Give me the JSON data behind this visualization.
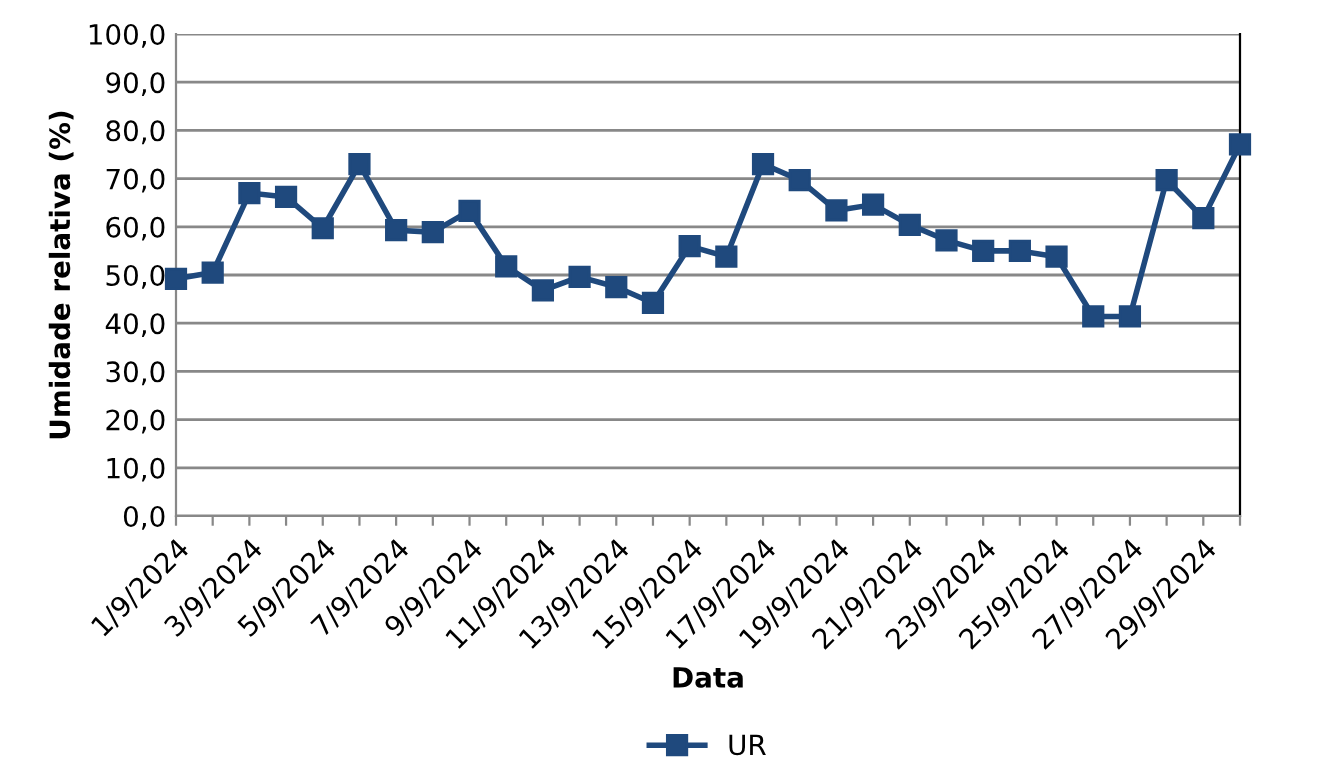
{
  "chart_data": {
    "type": "line",
    "xlabel": "Data",
    "ylabel": "Umidade relativa (%)",
    "categories": [
      "1/9/2024",
      null,
      "3/9/2024",
      null,
      "5/9/2024",
      null,
      "7/9/2024",
      null,
      "9/9/2024",
      null,
      "11/9/2024",
      null,
      "13/9/2024",
      null,
      "15/9/2024",
      null,
      "17/9/2024",
      null,
      "19/9/2024",
      null,
      "21/9/2024",
      null,
      "23/9/2024",
      null,
      "25/9/2024",
      null,
      "27/9/2024",
      null,
      "29/9/2024",
      null
    ],
    "series": [
      {
        "name": "UR",
        "color": "#1f497d",
        "values": [
          49.2,
          50.5,
          67.0,
          66.2,
          59.7,
          73.0,
          59.3,
          58.9,
          63.3,
          51.8,
          46.8,
          49.6,
          47.5,
          44.2,
          56.0,
          53.8,
          73.0,
          69.7,
          63.4,
          64.6,
          60.4,
          57.2,
          55.0,
          55.0,
          53.8,
          41.4,
          41.4,
          69.7,
          61.8,
          77.1
        ]
      }
    ],
    "ylim": [
      0,
      100
    ],
    "yticks": [
      {
        "value": 0,
        "label": "0,0"
      },
      {
        "value": 10,
        "label": "10,0"
      },
      {
        "value": 20,
        "label": "20,0"
      },
      {
        "value": 30,
        "label": "30,0"
      },
      {
        "value": 40,
        "label": "40,0"
      },
      {
        "value": 50,
        "label": "50,0"
      },
      {
        "value": 60,
        "label": "60,0"
      },
      {
        "value": 70,
        "label": "70,0"
      },
      {
        "value": 80,
        "label": "80,0"
      },
      {
        "value": 90,
        "label": "90,0"
      },
      {
        "value": 100,
        "label": "100,0"
      }
    ],
    "grid": "y",
    "legend": "bottom",
    "marker": "square",
    "line_style": "solid"
  }
}
